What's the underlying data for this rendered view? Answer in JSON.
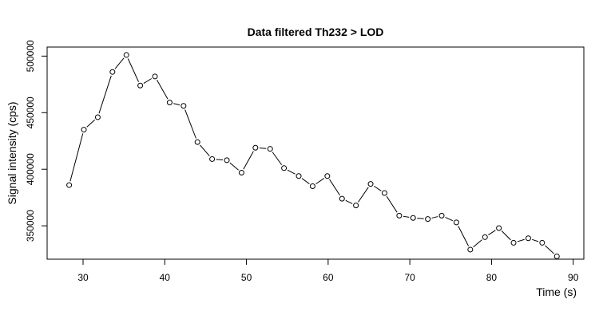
{
  "chart_data": {
    "type": "line",
    "title": "Data filtered Th232 > LOD",
    "xlabel": "Time (s)",
    "ylabel": "Signal intensity (cps)",
    "xlim": [
      25.6,
      91.3
    ],
    "ylim": [
      320500,
      508000
    ],
    "x_ticks": [
      30,
      40,
      50,
      60,
      70,
      80,
      90
    ],
    "y_ticks": [
      350000,
      400000,
      450000,
      500000
    ],
    "y_tick_labels": [
      "350000",
      "400000",
      "450000",
      "500000"
    ],
    "grid": false,
    "legend": "none",
    "line_color": "#000000",
    "marker": "open-circle",
    "series": [
      {
        "x": [
          28.3,
          30.1,
          31.8,
          33.6,
          35.3,
          37.0,
          38.8,
          40.6,
          42.3,
          44.0,
          45.8,
          47.6,
          49.4,
          51.1,
          52.9,
          54.6,
          56.4,
          58.1,
          59.9,
          61.7,
          63.4,
          65.2,
          66.9,
          68.7,
          70.4,
          72.2,
          73.9,
          75.7,
          77.4,
          79.2,
          80.9,
          82.7,
          84.5,
          86.2,
          88.0
        ],
        "y": [
          386000,
          435000,
          446000,
          486000,
          501000,
          474000,
          482000,
          459000,
          456000,
          424000,
          409000,
          408000,
          397000,
          419000,
          418000,
          401000,
          394000,
          385000,
          394000,
          374000,
          368000,
          387000,
          379000,
          359000,
          357000,
          356000,
          359000,
          353000,
          329000,
          340000,
          348000,
          335000,
          339000,
          335000,
          323000
        ]
      }
    ]
  }
}
